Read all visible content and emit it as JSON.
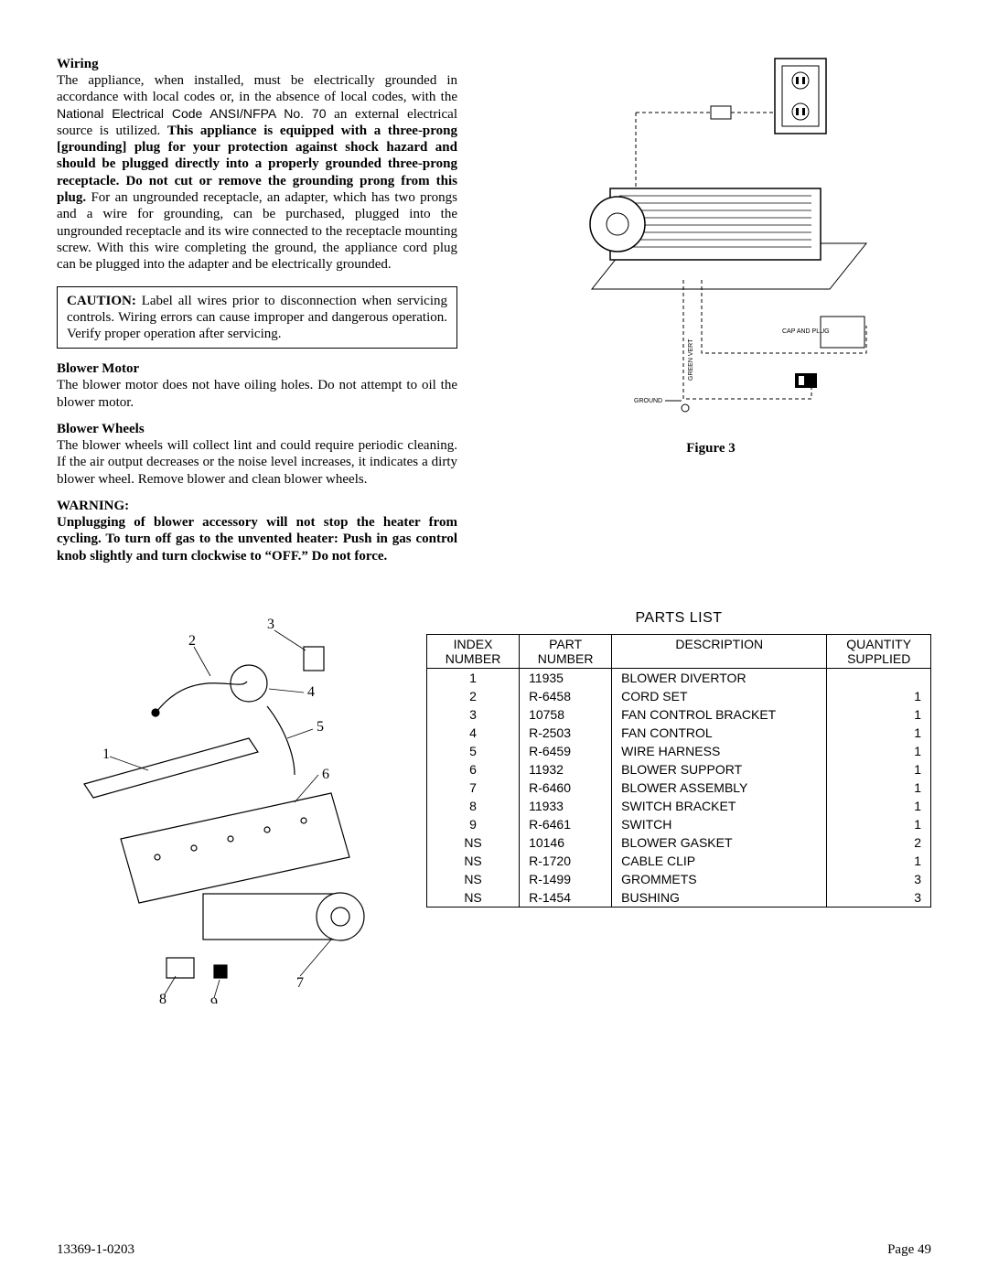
{
  "sections": {
    "wiring": {
      "heading": "Wiring",
      "para_pre": "The appliance, when installed, must be electrically grounded in accordance with local codes or, in the absence of local codes, with the ",
      "code_ref": "National Electrical Code ANSI/NFPA No. 70",
      "para_mid": " an external electrical source is utilized.  ",
      "bold_span": "This appliance is equipped with a three-prong [grounding] plug for your protection against shock hazard and should be plugged directly into a properly grounded three-prong receptacle.  Do not cut or remove the grounding prong from this plug.",
      "para_post": "  For an ungrounded receptacle, an adapter, which has two prongs and a wire for grounding, can be purchased, plugged into the ungrounded receptacle and its wire connected to the receptacle mounting screw. With this wire completing the ground, the appliance cord plug can be plugged into the adapter and be electrically grounded."
    },
    "caution": {
      "label": "CAUTION:",
      "text": " Label all wires prior to disconnection when servicing controls. Wiring errors can cause improper and dangerous operation. Verify proper operation after servicing."
    },
    "blower_motor": {
      "heading": "Blower Motor",
      "text": "The blower motor does not have oiling holes.  Do not attempt to oil the blower motor."
    },
    "blower_wheels": {
      "heading": "Blower Wheels",
      "text": "The blower wheels will collect lint and could require periodic cleaning. If the air output decreases or the noise level increases, it indicates a dirty blower wheel. Remove blower and clean blower wheels."
    },
    "warning": {
      "heading": "WARNING:",
      "text": "Unplugging of blower accessory  will not stop the heater from cycling.  To turn off gas to the unvented heater:  Push in gas control knob slightly and turn clockwise to “OFF.” Do not force."
    }
  },
  "figure3": {
    "caption": "Figure 3",
    "labels": {
      "cap_and_plug": "CAP AND PLUG",
      "green_vert": "GREEN VERT",
      "ground": "GROUND"
    }
  },
  "exploded": {
    "callouts": [
      "1",
      "2",
      "3",
      "4",
      "5",
      "6",
      "7",
      "8",
      "9"
    ]
  },
  "parts_list": {
    "title": "PARTS LIST",
    "columns": {
      "index_l1": "INDEX",
      "index_l2": "NUMBER",
      "part_l1": "PART",
      "part_l2": "NUMBER",
      "desc": "DESCRIPTION",
      "qty_l1": "QUANTITY",
      "qty_l2": "SUPPLIED"
    },
    "rows": [
      {
        "index": "1",
        "part": "11935",
        "desc": "BLOWER DIVERTOR",
        "qty": ""
      },
      {
        "index": "2",
        "part": "R-6458",
        "desc": "CORD SET",
        "qty": "1"
      },
      {
        "index": "3",
        "part": "10758",
        "desc": "FAN CONTROL BRACKET",
        "qty": "1"
      },
      {
        "index": "4",
        "part": "R-2503",
        "desc": "FAN CONTROL",
        "qty": "1"
      },
      {
        "index": "5",
        "part": "R-6459",
        "desc": "WIRE HARNESS",
        "qty": "1"
      },
      {
        "index": "6",
        "part": "11932",
        "desc": "BLOWER SUPPORT",
        "qty": "1"
      },
      {
        "index": "7",
        "part": "R-6460",
        "desc": "BLOWER ASSEMBLY",
        "qty": "1"
      },
      {
        "index": "8",
        "part": "11933",
        "desc": "SWITCH BRACKET",
        "qty": "1"
      },
      {
        "index": "9",
        "part": "R-6461",
        "desc": "SWITCH",
        "qty": "1"
      },
      {
        "index": "NS",
        "part": "10146",
        "desc": "BLOWER GASKET",
        "qty": "2"
      },
      {
        "index": "NS",
        "part": "R-1720",
        "desc": "CABLE CLIP",
        "qty": "1"
      },
      {
        "index": "NS",
        "part": "R-1499",
        "desc": "GROMMETS",
        "qty": "3"
      },
      {
        "index": "NS",
        "part": "R-1454",
        "desc": "BUSHING",
        "qty": "3"
      }
    ]
  },
  "footer": {
    "doc_no": "13369-1-0203",
    "page": "Page 49"
  }
}
